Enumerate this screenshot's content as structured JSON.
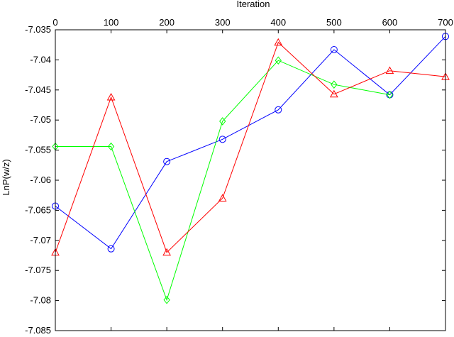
{
  "chart_data": {
    "type": "line",
    "title": "",
    "xlabel": "Iteration",
    "ylabel": "LnP(w/z)",
    "xlim": [
      0,
      700
    ],
    "ylim": [
      -7.085,
      -7.035
    ],
    "x_ticks": [
      0,
      100,
      200,
      300,
      400,
      500,
      600,
      700
    ],
    "y_ticks": [
      -7.035,
      -7.04,
      -7.045,
      -7.05,
      -7.055,
      -7.06,
      -7.065,
      -7.07,
      -7.075,
      -7.08,
      -7.085
    ],
    "x_tick_labels": [
      "0",
      "100",
      "200",
      "300",
      "400",
      "500",
      "600",
      "700"
    ],
    "y_tick_labels": [
      "-7.035",
      "-7.04",
      "-7.045",
      "-7.05",
      "-7.055",
      "-7.06",
      "-7.065",
      "-7.07",
      "-7.075",
      "-7.08",
      "-7.085"
    ],
    "x_axis_position": "top",
    "grid": false,
    "legend": "none",
    "x": [
      0,
      100,
      200,
      300,
      400,
      500,
      600,
      700
    ],
    "series": [
      {
        "color": "#0000ff",
        "marker": "circle",
        "values": [
          -7.0643,
          -7.0714,
          -7.0569,
          -7.0532,
          -7.0483,
          -7.0383,
          -7.0458,
          -7.0361
        ]
      },
      {
        "color": "#00ff00",
        "marker": "diamond",
        "values": [
          -7.0544,
          -7.0544,
          -7.0799,
          -7.0502,
          -7.0401,
          -7.0441,
          -7.0458,
          null
        ]
      },
      {
        "color": "#ff0000",
        "marker": "triangle",
        "values": [
          -7.072,
          -7.0462,
          -7.072,
          -7.063,
          -7.0371,
          -7.0457,
          -7.0418,
          -7.0428
        ]
      }
    ]
  }
}
